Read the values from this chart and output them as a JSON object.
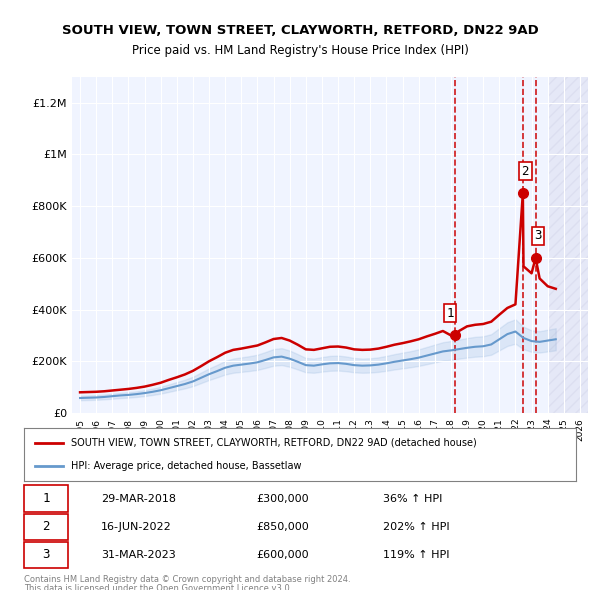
{
  "title": "SOUTH VIEW, TOWN STREET, CLAYWORTH, RETFORD, DN22 9AD",
  "subtitle": "Price paid vs. HM Land Registry's House Price Index (HPI)",
  "legend_property": "SOUTH VIEW, TOWN STREET, CLAYWORTH, RETFORD, DN22 9AD (detached house)",
  "legend_hpi": "HPI: Average price, detached house, Bassetlaw",
  "sales": [
    {
      "label": "1",
      "date": "29-MAR-2018",
      "price": 300000,
      "hpi_pct": "36% ↑ HPI",
      "year": 2018.24
    },
    {
      "label": "2",
      "date": "16-JUN-2022",
      "price": 850000,
      "hpi_pct": "202% ↑ HPI",
      "year": 2022.46
    },
    {
      "label": "3",
      "date": "31-MAR-2023",
      "price": 600000,
      "hpi_pct": "119% ↑ HPI",
      "year": 2023.25
    }
  ],
  "footer1": "Contains HM Land Registry data © Crown copyright and database right 2024.",
  "footer2": "This data is licensed under the Open Government Licence v3.0.",
  "ylim": [
    0,
    1300000
  ],
  "xlim": [
    1994.5,
    2026.5
  ],
  "yticks": [
    0,
    200000,
    400000,
    600000,
    800000,
    1000000,
    1200000
  ],
  "ytick_labels": [
    "£0",
    "£200K",
    "£400K",
    "£600K",
    "£800K",
    "£1M",
    "£1.2M"
  ],
  "hpi_data_x": [
    1995,
    1995.5,
    1996,
    1996.5,
    1997,
    1997.5,
    1998,
    1998.5,
    1999,
    1999.5,
    2000,
    2000.5,
    2001,
    2001.5,
    2002,
    2002.5,
    2003,
    2003.5,
    2004,
    2004.5,
    2005,
    2005.5,
    2006,
    2006.5,
    2007,
    2007.5,
    2008,
    2008.5,
    2009,
    2009.5,
    2010,
    2010.5,
    2011,
    2011.5,
    2012,
    2012.5,
    2013,
    2013.5,
    2014,
    2014.5,
    2015,
    2015.5,
    2016,
    2016.5,
    2017,
    2017.5,
    2018,
    2018.5,
    2019,
    2019.5,
    2020,
    2020.5,
    2021,
    2021.5,
    2022,
    2022.5,
    2023,
    2023.5,
    2024,
    2024.5
  ],
  "hpi_data_y": [
    58000,
    59000,
    60000,
    62000,
    65000,
    68000,
    70000,
    73000,
    77000,
    82000,
    88000,
    96000,
    104000,
    112000,
    122000,
    136000,
    150000,
    162000,
    175000,
    183000,
    187000,
    191000,
    196000,
    205000,
    215000,
    218000,
    210000,
    198000,
    185000,
    183000,
    188000,
    192000,
    193000,
    190000,
    185000,
    183000,
    184000,
    187000,
    192000,
    198000,
    203000,
    208000,
    214000,
    222000,
    230000,
    238000,
    242000,
    247000,
    252000,
    256000,
    258000,
    265000,
    285000,
    305000,
    315000,
    290000,
    278000,
    275000,
    280000,
    285000
  ],
  "property_data_x": [
    1995,
    1995.5,
    1996,
    1996.5,
    1997,
    1997.5,
    1998,
    1998.5,
    1999,
    1999.5,
    2000,
    2000.5,
    2001,
    2001.5,
    2002,
    2002.5,
    2003,
    2003.5,
    2004,
    2004.5,
    2005,
    2005.5,
    2006,
    2006.5,
    2007,
    2007.5,
    2008,
    2008.5,
    2009,
    2009.5,
    2010,
    2010.5,
    2011,
    2011.5,
    2012,
    2012.5,
    2013,
    2013.5,
    2014,
    2014.5,
    2015,
    2015.5,
    2016,
    2016.5,
    2017,
    2017.5,
    2018,
    2018.24,
    2018.5,
    2019,
    2019.5,
    2020,
    2020.5,
    2021,
    2021.5,
    2022,
    2022.46,
    2022.5,
    2023,
    2023.25,
    2023.5,
    2024,
    2024.5
  ],
  "property_data_y": [
    80000,
    81000,
    82000,
    84000,
    87000,
    90000,
    93000,
    97000,
    102000,
    109000,
    117000,
    128000,
    138000,
    149000,
    163000,
    181000,
    200000,
    216000,
    233000,
    244000,
    249000,
    255000,
    261000,
    273000,
    286000,
    290000,
    280000,
    264000,
    246000,
    244000,
    250000,
    256000,
    257000,
    253000,
    246000,
    244000,
    245000,
    249000,
    256000,
    264000,
    270000,
    277000,
    285000,
    296000,
    306000,
    317000,
    300000,
    300000,
    317000,
    335000,
    341000,
    344000,
    353000,
    380000,
    406000,
    420000,
    850000,
    567000,
    540000,
    600000,
    520000,
    490000,
    480000
  ],
  "future_start": 2024.0,
  "sale_color": "#cc0000",
  "hpi_color": "#6699cc",
  "hpi_band_alpha": 0.15,
  "future_hatch": "///",
  "future_color": "#aaaacc",
  "future_alpha": 0.15,
  "vline_color": "#cc0000",
  "background_color": "#f0f4ff"
}
